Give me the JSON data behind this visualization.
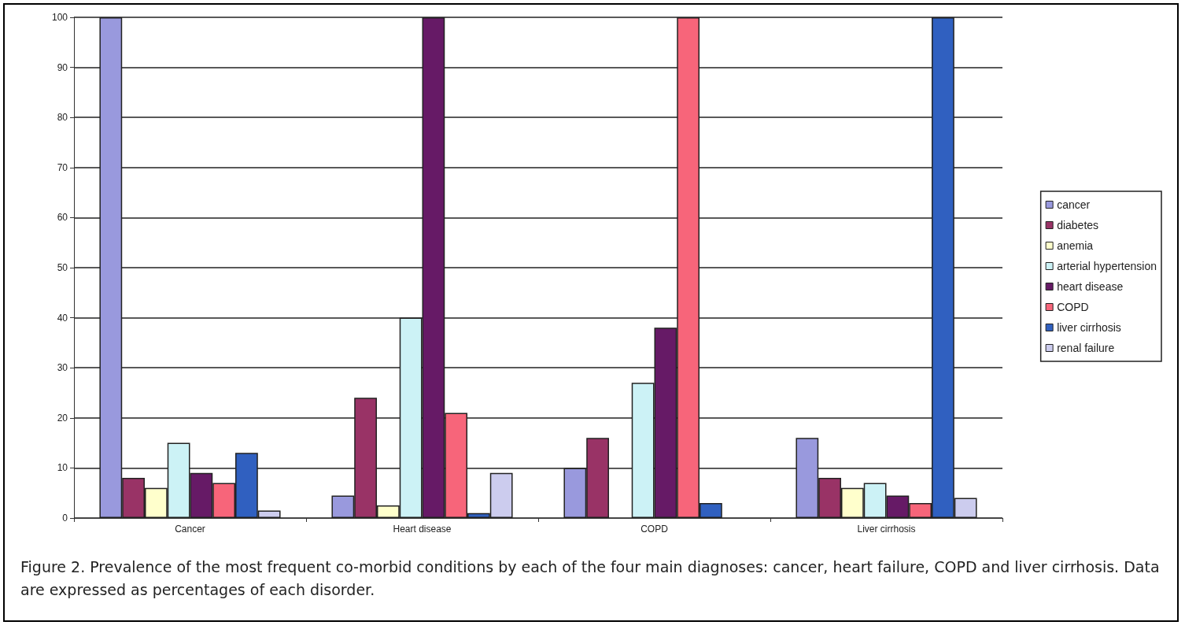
{
  "chart_data": {
    "type": "bar",
    "categories": [
      "Cancer",
      "Heart disease",
      "COPD",
      "Liver cirrhosis"
    ],
    "series": [
      {
        "name": "cancer",
        "color": "#9999dd",
        "values": [
          100,
          4.5,
          10,
          16
        ]
      },
      {
        "name": "diabetes",
        "color": "#993366",
        "values": [
          8,
          24,
          16,
          8
        ]
      },
      {
        "name": "anemia",
        "color": "#ffffcc",
        "values": [
          6,
          2.5,
          0,
          6
        ]
      },
      {
        "name": "arterial hypertension",
        "color": "#ccf2f6",
        "values": [
          15,
          40,
          27,
          7
        ]
      },
      {
        "name": "heart disease",
        "color": "#661a66",
        "values": [
          9,
          100,
          38,
          4.5
        ]
      },
      {
        "name": "COPD",
        "color": "#f7657a",
        "values": [
          7,
          21,
          100,
          3
        ]
      },
      {
        "name": "liver cirrhosis",
        "color": "#3060c0",
        "values": [
          13,
          1,
          3,
          100
        ]
      },
      {
        "name": "renal failure",
        "color": "#ccccee",
        "values": [
          1.5,
          9,
          0,
          4
        ]
      }
    ],
    "ylim": [
      0,
      100
    ],
    "yticks": [
      0,
      10,
      20,
      30,
      40,
      50,
      60,
      70,
      80,
      90,
      100
    ],
    "grid": "y",
    "legend": "right",
    "annotations": [
      "Figure 2. Prevalence of the most frequent co-morbid conditions by each of the four main diagnoses: cancer, heart failure, COPD and liver cirrhosis. Data are expressed as percentages of each disorder."
    ]
  }
}
